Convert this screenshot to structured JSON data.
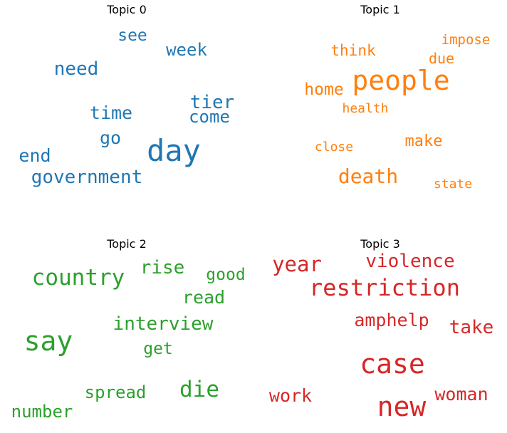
{
  "chart_data": {
    "type": "wordcloud",
    "panels": [
      {
        "title": "Topic 0",
        "color": "#1f77b4",
        "words": [
          {
            "text": "day",
            "weight": 1.0
          },
          {
            "text": "government",
            "weight": 0.62
          },
          {
            "text": "need",
            "weight": 0.62
          },
          {
            "text": "tier",
            "weight": 0.62
          },
          {
            "text": "time",
            "weight": 0.6
          },
          {
            "text": "end",
            "weight": 0.58
          },
          {
            "text": "go",
            "weight": 0.58
          },
          {
            "text": "week",
            "weight": 0.56
          },
          {
            "text": "come",
            "weight": 0.56
          },
          {
            "text": "see",
            "weight": 0.54
          }
        ]
      },
      {
        "title": "Topic 1",
        "color": "#ff7f0e",
        "words": [
          {
            "text": "people",
            "weight": 1.0
          },
          {
            "text": "death",
            "weight": 0.75
          },
          {
            "text": "home",
            "weight": 0.6
          },
          {
            "text": "make",
            "weight": 0.58
          },
          {
            "text": "think",
            "weight": 0.56
          },
          {
            "text": "due",
            "weight": 0.54
          },
          {
            "text": "impose",
            "weight": 0.5
          },
          {
            "text": "health",
            "weight": 0.48
          },
          {
            "text": "close",
            "weight": 0.46
          },
          {
            "text": "state",
            "weight": 0.46
          }
        ]
      },
      {
        "title": "Topic 2",
        "color": "#2ca02c",
        "words": [
          {
            "text": "say",
            "weight": 1.0
          },
          {
            "text": "country",
            "weight": 0.82
          },
          {
            "text": "die",
            "weight": 0.82
          },
          {
            "text": "interview",
            "weight": 0.7
          },
          {
            "text": "rise",
            "weight": 0.68
          },
          {
            "text": "read",
            "weight": 0.66
          },
          {
            "text": "spread",
            "weight": 0.64
          },
          {
            "text": "number",
            "weight": 0.64
          },
          {
            "text": "good",
            "weight": 0.62
          },
          {
            "text": "get",
            "weight": 0.62
          }
        ]
      },
      {
        "title": "Topic 3",
        "color": "#d62728",
        "words": [
          {
            "text": "new",
            "weight": 1.0
          },
          {
            "text": "case",
            "weight": 1.0
          },
          {
            "text": "restriction",
            "weight": 0.88
          },
          {
            "text": "year",
            "weight": 0.8
          },
          {
            "text": "violence",
            "weight": 0.72
          },
          {
            "text": "take",
            "weight": 0.72
          },
          {
            "text": "amphelp",
            "weight": 0.68
          },
          {
            "text": "work",
            "weight": 0.68
          },
          {
            "text": "woman",
            "weight": 0.68
          }
        ]
      }
    ]
  }
}
